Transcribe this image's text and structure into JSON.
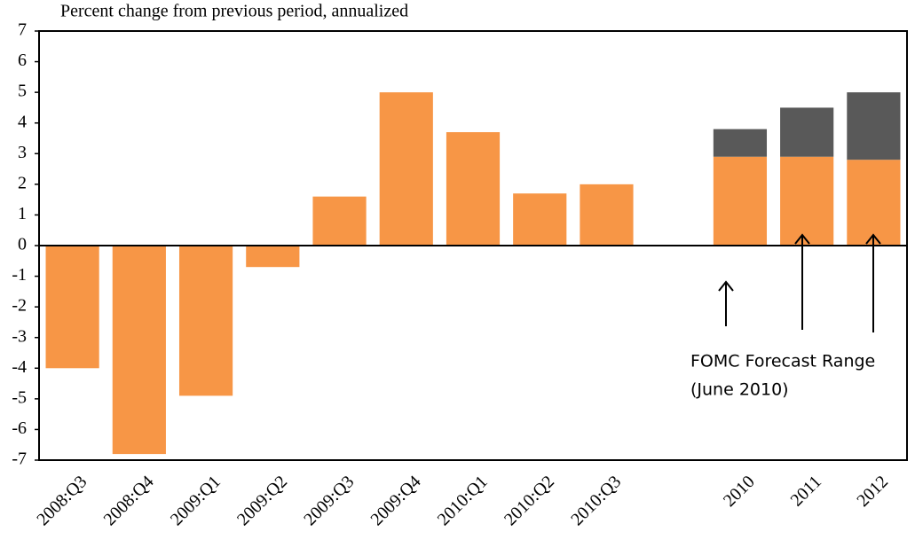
{
  "chart_data": {
    "type": "stacked-bar",
    "subtitle": "Percent change from previous period, annualized",
    "categories": [
      "2008:Q3",
      "2008:Q4",
      "2009:Q1",
      "2009:Q2",
      "2009:Q3",
      "2009:Q4",
      "2010:Q1",
      "2010:Q2",
      "2010:Q3",
      null,
      "2010",
      "2011",
      "2012"
    ],
    "series": [
      {
        "color": "#f79646",
        "values": [
          -4,
          -6.8,
          -4.9,
          -0.7,
          1.6,
          5.0,
          3.7,
          1.7,
          2.0,
          null,
          2.9,
          2.9,
          2.8
        ]
      },
      {
        "color": "#595959",
        "values": [
          null,
          null,
          null,
          null,
          null,
          null,
          null,
          null,
          null,
          null,
          0.9,
          1.6,
          2.2
        ]
      }
    ],
    "ylim": [
      -7,
      7
    ],
    "yticks": [
      -7,
      -6,
      -5,
      -4,
      -3,
      -2,
      -1,
      0,
      1,
      2,
      3,
      4,
      5,
      6,
      7
    ],
    "annotations": [
      "FOMC Forecast Range",
      "(June 2010)"
    ]
  }
}
